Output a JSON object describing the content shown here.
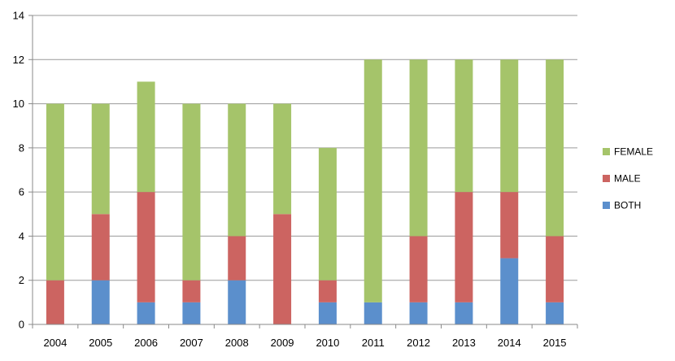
{
  "chart_data": {
    "type": "bar",
    "stacked": true,
    "categories": [
      "2004",
      "2005",
      "2006",
      "2007",
      "2008",
      "2009",
      "2010",
      "2011",
      "2012",
      "2013",
      "2014",
      "2015"
    ],
    "series": [
      {
        "name": "BOTH",
        "color": "#5b8fcc",
        "values": [
          0,
          2,
          1,
          1,
          2,
          0,
          1,
          1,
          1,
          1,
          3,
          1
        ]
      },
      {
        "name": "MALE",
        "color": "#cc6461",
        "values": [
          2,
          3,
          5,
          1,
          2,
          5,
          1,
          0,
          3,
          5,
          3,
          3
        ]
      },
      {
        "name": "FEMALE",
        "color": "#a5c46a",
        "values": [
          8,
          5,
          5,
          8,
          6,
          5,
          6,
          11,
          8,
          6,
          6,
          8
        ]
      }
    ],
    "ylim": [
      0,
      14
    ],
    "yticks": [
      "0",
      "2",
      "4",
      "6",
      "8",
      "10",
      "12",
      "14"
    ],
    "grid": true,
    "legend_position": "right",
    "legend_order": [
      "FEMALE",
      "MALE",
      "BOTH"
    ]
  }
}
